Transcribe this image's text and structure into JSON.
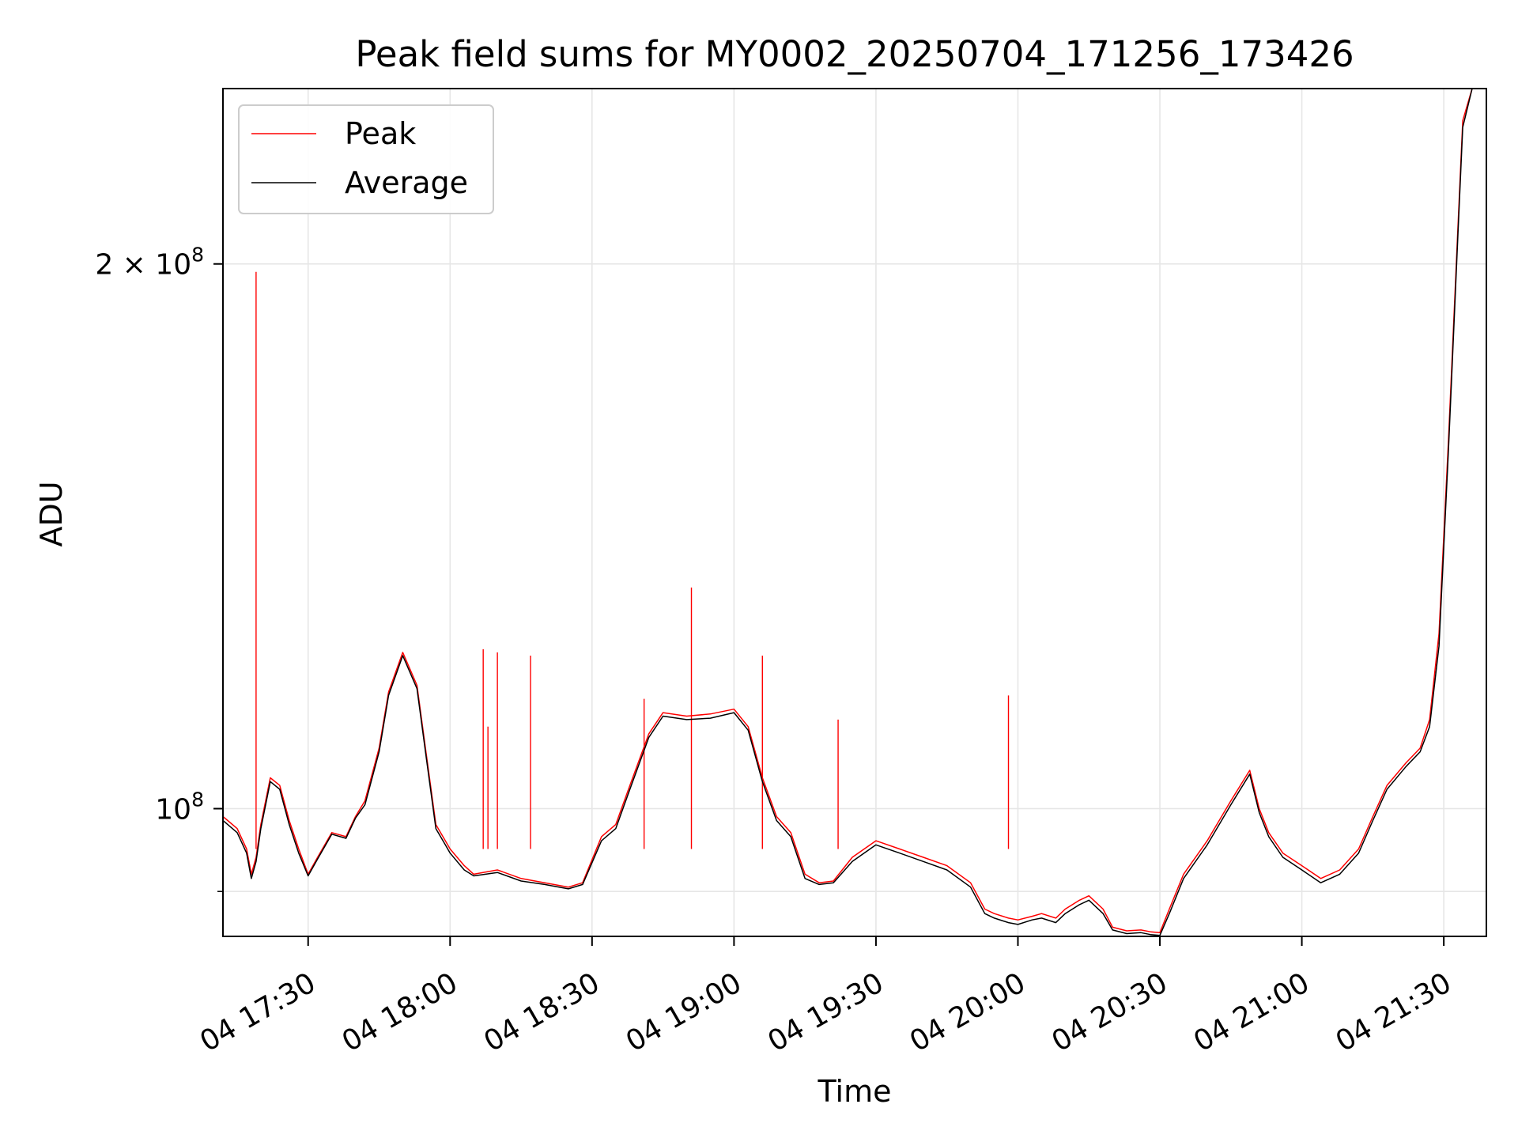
{
  "chart_data": {
    "type": "line",
    "title": "Peak field sums for MY0002_20250704_171256_173426",
    "xlabel": "Time",
    "ylabel": "ADU",
    "y_scale": "log",
    "grid": true,
    "legend_position": "top-left",
    "xlim": [
      "2025-07-04 17:12",
      "2025-07-04 21:39"
    ],
    "ylim": [
      85000000,
      250000000
    ],
    "x_ticks": [
      {
        "value": "2025-07-04 17:30",
        "label": "04 17:30"
      },
      {
        "value": "2025-07-04 18:00",
        "label": "04 18:00"
      },
      {
        "value": "2025-07-04 18:30",
        "label": "04 18:30"
      },
      {
        "value": "2025-07-04 19:00",
        "label": "04 19:00"
      },
      {
        "value": "2025-07-04 19:30",
        "label": "04 19:30"
      },
      {
        "value": "2025-07-04 20:00",
        "label": "04 20:00"
      },
      {
        "value": "2025-07-04 20:30",
        "label": "04 20:30"
      },
      {
        "value": "2025-07-04 21:00",
        "label": "04 21:00"
      },
      {
        "value": "2025-07-04 21:30",
        "label": "04 21:30"
      }
    ],
    "y_major_ticks": [
      {
        "value": 100000000,
        "base": "10",
        "exp": "8",
        "coef": ""
      },
      {
        "value": 200000000,
        "base": "10",
        "exp": "8",
        "coef": "2 × "
      }
    ],
    "y_minor_ticks": [
      90000000
    ],
    "series": [
      {
        "name": "Peak",
        "color": "#ff0000",
        "x": [
          "2025-07-04 17:12",
          "2025-07-04 17:13",
          "2025-07-04 17:15",
          "2025-07-04 17:17",
          "2025-07-04 17:18",
          "2025-07-04 17:19",
          "2025-07-04 17:20",
          "2025-07-04 17:22",
          "2025-07-04 17:24",
          "2025-07-04 17:26",
          "2025-07-04 17:28",
          "2025-07-04 17:30",
          "2025-07-04 17:32",
          "2025-07-04 17:35",
          "2025-07-04 17:38",
          "2025-07-04 17:40",
          "2025-07-04 17:42",
          "2025-07-04 17:45",
          "2025-07-04 17:47",
          "2025-07-04 17:50",
          "2025-07-04 17:53",
          "2025-07-04 17:55",
          "2025-07-04 17:57",
          "2025-07-04 17:59",
          "2025-07-04 18:00",
          "2025-07-04 18:03",
          "2025-07-04 18:05",
          "2025-07-04 18:10",
          "2025-07-04 18:15",
          "2025-07-04 18:20",
          "2025-07-04 18:25",
          "2025-07-04 18:28",
          "2025-07-04 18:32",
          "2025-07-04 18:35",
          "2025-07-04 18:38",
          "2025-07-04 18:42",
          "2025-07-04 18:45",
          "2025-07-04 18:50",
          "2025-07-04 18:55",
          "2025-07-04 19:00",
          "2025-07-04 19:03",
          "2025-07-04 19:06",
          "2025-07-04 19:09",
          "2025-07-04 19:12",
          "2025-07-04 19:15",
          "2025-07-04 19:18",
          "2025-07-04 19:21",
          "2025-07-04 19:25",
          "2025-07-04 19:30",
          "2025-07-04 19:35",
          "2025-07-04 19:40",
          "2025-07-04 19:45",
          "2025-07-04 19:50",
          "2025-07-04 19:53",
          "2025-07-04 19:55",
          "2025-07-04 19:58",
          "2025-07-04 20:00",
          "2025-07-04 20:03",
          "2025-07-04 20:05",
          "2025-07-04 20:08",
          "2025-07-04 20:10",
          "2025-07-04 20:13",
          "2025-07-04 20:15",
          "2025-07-04 20:18",
          "2025-07-04 20:20",
          "2025-07-04 20:23",
          "2025-07-04 20:26",
          "2025-07-04 20:28",
          "2025-07-04 20:30",
          "2025-07-04 20:32",
          "2025-07-04 20:35",
          "2025-07-04 20:40",
          "2025-07-04 20:45",
          "2025-07-04 20:49",
          "2025-07-04 20:51",
          "2025-07-04 20:53",
          "2025-07-04 20:56",
          "2025-07-04 21:00",
          "2025-07-04 21:04",
          "2025-07-04 21:08",
          "2025-07-04 21:12",
          "2025-07-04 21:15",
          "2025-07-04 21:18",
          "2025-07-04 21:22",
          "2025-07-04 21:25",
          "2025-07-04 21:27",
          "2025-07-04 21:29",
          "2025-07-04 21:31",
          "2025-07-04 21:33",
          "2025-07-04 21:34",
          "2025-07-04 21:36",
          "2025-07-04 21:39"
        ],
        "y": [
          99000000,
          98500000,
          97500000,
          95000000,
          92000000,
          94000000,
          98000000,
          104000000,
          103000000,
          98500000,
          95000000,
          92000000,
          94000000,
          97000000,
          96500000,
          99000000,
          101000000,
          108000000,
          116000000,
          122000000,
          117000000,
          107000000,
          98000000,
          96000000,
          95000000,
          93000000,
          92000000,
          92500000,
          91500000,
          91000000,
          90500000,
          91000000,
          96500000,
          98000000,
          103000000,
          110000000,
          113000000,
          112500000,
          112800000,
          113500000,
          111000000,
          104000000,
          99000000,
          97000000,
          92000000,
          91000000,
          91200000,
          94000000,
          96000000,
          95000000,
          94000000,
          93000000,
          91000000,
          88000000,
          87500000,
          87000000,
          86800000,
          87200000,
          87500000,
          87000000,
          88000000,
          89000000,
          89500000,
          88000000,
          86000000,
          85600000,
          85700000,
          85500000,
          85400000,
          88000000,
          92000000,
          96000000,
          101000000,
          105000000,
          100000000,
          97000000,
          94500000,
          93000000,
          91500000,
          92500000,
          95000000,
          99000000,
          103000000,
          106000000,
          108000000,
          112000000,
          125000000,
          160000000,
          210000000,
          240000000,
          250000000,
          250000000
        ]
      },
      {
        "name": "Average",
        "color": "#000000",
        "x": [
          "2025-07-04 17:12",
          "2025-07-04 17:13",
          "2025-07-04 17:15",
          "2025-07-04 17:17",
          "2025-07-04 17:18",
          "2025-07-04 17:19",
          "2025-07-04 17:20",
          "2025-07-04 17:22",
          "2025-07-04 17:24",
          "2025-07-04 17:26",
          "2025-07-04 17:28",
          "2025-07-04 17:30",
          "2025-07-04 17:32",
          "2025-07-04 17:35",
          "2025-07-04 17:38",
          "2025-07-04 17:40",
          "2025-07-04 17:42",
          "2025-07-04 17:45",
          "2025-07-04 17:47",
          "2025-07-04 17:50",
          "2025-07-04 17:53",
          "2025-07-04 17:55",
          "2025-07-04 17:57",
          "2025-07-04 17:59",
          "2025-07-04 18:00",
          "2025-07-04 18:03",
          "2025-07-04 18:05",
          "2025-07-04 18:10",
          "2025-07-04 18:15",
          "2025-07-04 18:20",
          "2025-07-04 18:25",
          "2025-07-04 18:28",
          "2025-07-04 18:32",
          "2025-07-04 18:35",
          "2025-07-04 18:38",
          "2025-07-04 18:42",
          "2025-07-04 18:45",
          "2025-07-04 18:50",
          "2025-07-04 18:55",
          "2025-07-04 19:00",
          "2025-07-04 19:03",
          "2025-07-04 19:06",
          "2025-07-04 19:09",
          "2025-07-04 19:12",
          "2025-07-04 19:15",
          "2025-07-04 19:18",
          "2025-07-04 19:21",
          "2025-07-04 19:25",
          "2025-07-04 19:30",
          "2025-07-04 19:35",
          "2025-07-04 19:40",
          "2025-07-04 19:45",
          "2025-07-04 19:50",
          "2025-07-04 19:53",
          "2025-07-04 19:55",
          "2025-07-04 19:58",
          "2025-07-04 20:00",
          "2025-07-04 20:03",
          "2025-07-04 20:05",
          "2025-07-04 20:08",
          "2025-07-04 20:10",
          "2025-07-04 20:13",
          "2025-07-04 20:15",
          "2025-07-04 20:18",
          "2025-07-04 20:20",
          "2025-07-04 20:23",
          "2025-07-04 20:26",
          "2025-07-04 20:28",
          "2025-07-04 20:30",
          "2025-07-04 20:32",
          "2025-07-04 20:35",
          "2025-07-04 20:40",
          "2025-07-04 20:45",
          "2025-07-04 20:49",
          "2025-07-04 20:51",
          "2025-07-04 20:53",
          "2025-07-04 20:56",
          "2025-07-04 21:00",
          "2025-07-04 21:04",
          "2025-07-04 21:08",
          "2025-07-04 21:12",
          "2025-07-04 21:15",
          "2025-07-04 21:18",
          "2025-07-04 21:22",
          "2025-07-04 21:25",
          "2025-07-04 21:27",
          "2025-07-04 21:29",
          "2025-07-04 21:31",
          "2025-07-04 21:33",
          "2025-07-04 21:34",
          "2025-07-04 21:36",
          "2025-07-04 21:39"
        ],
        "y": [
          98500000,
          98000000,
          97000000,
          94500000,
          91500000,
          93500000,
          97500000,
          103500000,
          102500000,
          98000000,
          94500000,
          91800000,
          93800000,
          96800000,
          96300000,
          98800000,
          100500000,
          107500000,
          115500000,
          121500000,
          116500000,
          106500000,
          97500000,
          95500000,
          94500000,
          92500000,
          91800000,
          92200000,
          91200000,
          90800000,
          90300000,
          90800000,
          96000000,
          97500000,
          102500000,
          109500000,
          112500000,
          112000000,
          112200000,
          113000000,
          110500000,
          103500000,
          98500000,
          96500000,
          91500000,
          90800000,
          91000000,
          93500000,
          95500000,
          94500000,
          93500000,
          92500000,
          90500000,
          87500000,
          87000000,
          86500000,
          86300000,
          86800000,
          87000000,
          86500000,
          87500000,
          88500000,
          89000000,
          87500000,
          85700000,
          85300000,
          85400000,
          85200000,
          85100000,
          87500000,
          91500000,
          95500000,
          100500000,
          104500000,
          99500000,
          96500000,
          94000000,
          92500000,
          91000000,
          92000000,
          94500000,
          98500000,
          102500000,
          105500000,
          107500000,
          111000000,
          123000000,
          158000000,
          208000000,
          238000000,
          250000000,
          250000000
        ]
      }
    ],
    "spikes": {
      "x": [
        "2025-07-04 17:19",
        "2025-07-04 18:07",
        "2025-07-04 18:08",
        "2025-07-04 18:10",
        "2025-07-04 18:17",
        "2025-07-04 18:41",
        "2025-07-04 18:51",
        "2025-07-04 19:06",
        "2025-07-04 19:22",
        "2025-07-04 19:58"
      ],
      "y": [
        198000000,
        122500000,
        111000000,
        122000000,
        121500000,
        115000000,
        132500000,
        121500000,
        112000000,
        115500000
      ]
    }
  }
}
